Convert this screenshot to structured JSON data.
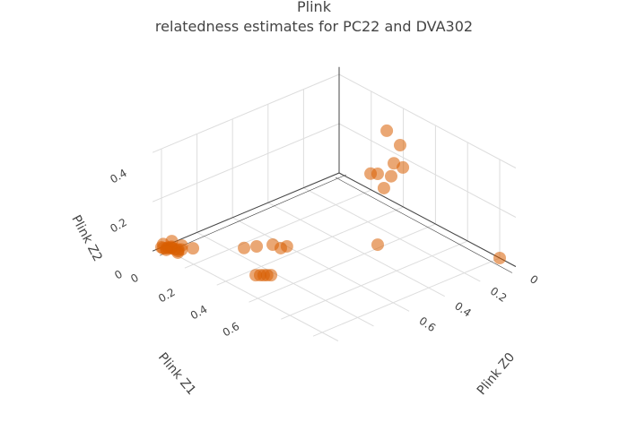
{
  "chart_data": {
    "type": "scatter3d",
    "title": [
      "Plink",
      "relatedness estimates for PC22 and DVA302"
    ],
    "marker_color": "#d95f02",
    "grid_color": "#dddddd",
    "axis_line_color": "#444444",
    "axes": {
      "x": {
        "title": "Plink Z0",
        "range": [
          0,
          1.05
        ],
        "ticks": [
          0,
          0.2,
          0.4,
          0.6
        ],
        "ticklabels": [
          "0",
          "0.2",
          "0.4",
          "0.6"
        ]
      },
      "y": {
        "title": "Plink Z1",
        "range": [
          0,
          1.1
        ],
        "ticks": [
          0,
          0.2,
          0.4,
          0.6
        ],
        "ticklabels": [
          "0",
          "0.2",
          "0.4",
          "0.6"
        ]
      },
      "z": {
        "title": "Plink Z2",
        "range": [
          0,
          0.4
        ],
        "ticks": [
          0,
          0.2,
          0.4
        ],
        "ticklabels": [
          "0",
          "0.2",
          "0.4"
        ]
      }
    },
    "points": {
      "x": [
        1.0,
        0.99,
        0.98,
        0.97,
        0.99,
        0.96,
        0.98,
        1.0,
        0.97,
        0.95,
        0.99,
        0.96,
        0.98,
        0.94,
        0.97,
        1.0,
        0.907,
        0.753,
        0.713,
        0.662,
        0.643,
        0.622,
        0.869,
        0.855,
        0.844,
        0.833,
        0.821,
        0.347,
        0.0,
        0.154,
        0.135,
        0.18,
        0.159,
        0.265,
        0.244,
        0.207,
        0.246
      ],
      "y": [
        0.0,
        0.02,
        0.04,
        0.05,
        0.0,
        0.06,
        0.02,
        0.01,
        0.03,
        0.07,
        0.05,
        0.02,
        0.08,
        0.06,
        0.07,
        0.03,
        0.093,
        0.241,
        0.275,
        0.319,
        0.348,
        0.363,
        0.442,
        0.454,
        0.464,
        0.473,
        0.484,
        0.624,
        1.0,
        0.467,
        0.529,
        0.54,
        0.573,
        0.489,
        0.51,
        0.553,
        0.551
      ],
      "z": [
        0.0,
        0.0,
        0.01,
        0.0,
        0.01,
        0.0,
        0.0,
        0.0,
        0.0,
        0.0,
        0.01,
        0.02,
        0.0,
        0.01,
        0.0,
        0.0,
        0.0,
        0.006,
        0.012,
        0.019,
        0.009,
        0.015,
        0.0,
        0.0,
        0.0,
        0.0,
        0.0,
        0.029,
        0.0,
        0.379,
        0.336,
        0.28,
        0.268,
        0.246,
        0.246,
        0.24,
        0.203
      ]
    }
  }
}
